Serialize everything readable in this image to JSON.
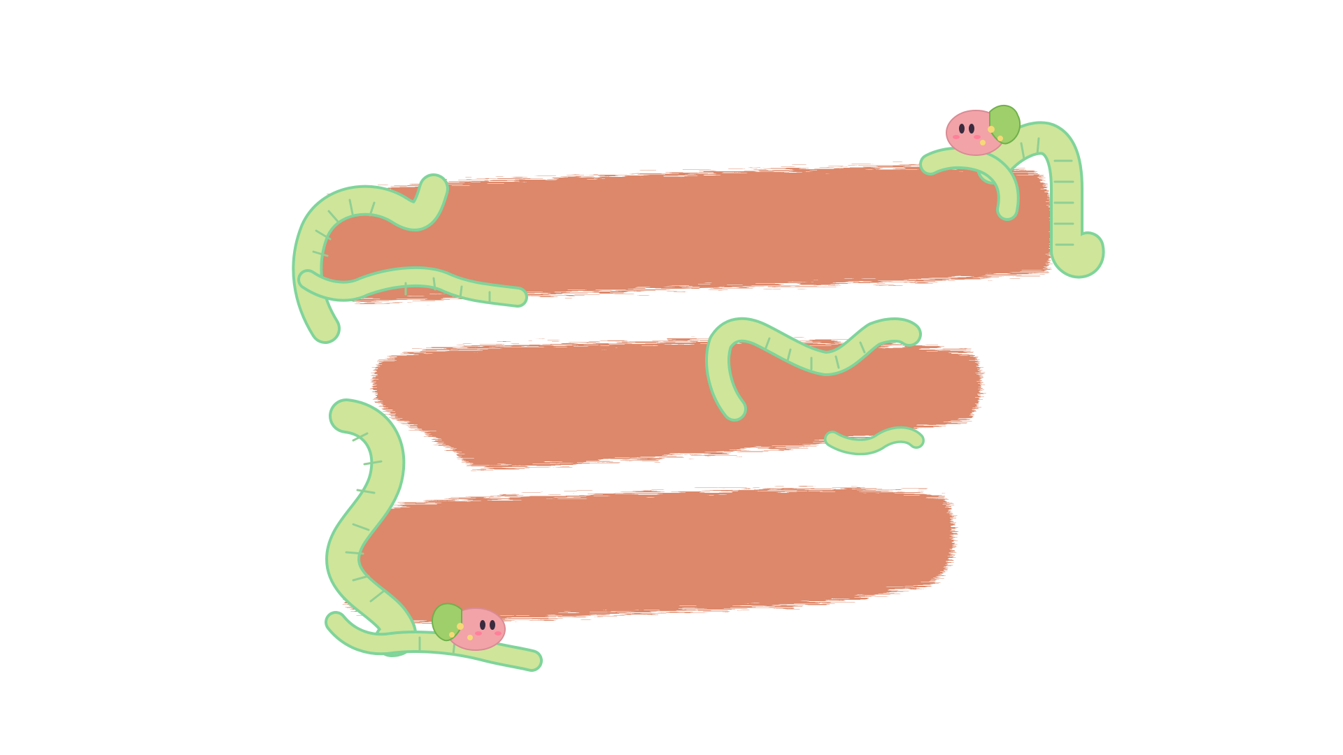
{
  "colors": {
    "background": "#ffffff",
    "crayon_band": "#dd886a",
    "crayon_band_edge": "#e29a7f",
    "vine_fill": "#cfe59a",
    "vine_outline": "#7fd49a",
    "vine_stripe": "#8fcf94",
    "creature_body": "#f2a3a8",
    "creature_spots": "#f6d977",
    "creature_shell": "#9fcf6a",
    "creature_eye": "#3a2b3f",
    "creature_blush": "#ff7f9a"
  },
  "bands": [
    {
      "name": "top-band"
    },
    {
      "name": "middle-band"
    },
    {
      "name": "bottom-band"
    }
  ],
  "decorations": [
    {
      "name": "vine-decoration",
      "count": 7
    },
    {
      "name": "creature-decoration",
      "count": 2
    }
  ]
}
